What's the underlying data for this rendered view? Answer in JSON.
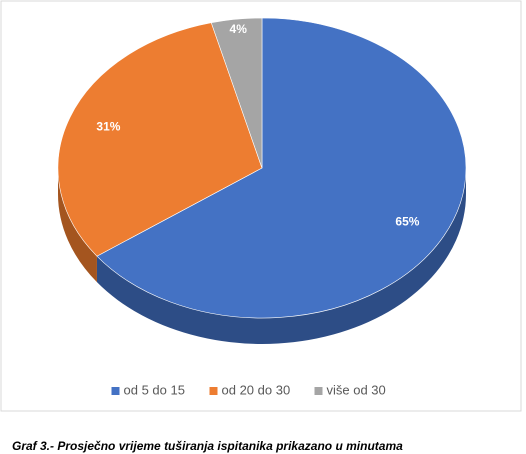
{
  "chart_data": {
    "type": "pie",
    "categories": [
      "od 5 do 15",
      "od 20 do 30",
      "više od 30"
    ],
    "values": [
      65,
      31,
      4
    ],
    "value_labels": [
      "65%",
      "31%",
      "4%"
    ],
    "colors": [
      "#4472c4",
      "#ed7d31",
      "#a5a5a5"
    ],
    "side_colors": [
      "#2d4d86",
      "#a4551f",
      "#6f6f6f"
    ],
    "legend": "bottom",
    "caption": "Graf 3.- Prosječno vrijeme tuširanja ispitanika prikazano u minutama"
  }
}
